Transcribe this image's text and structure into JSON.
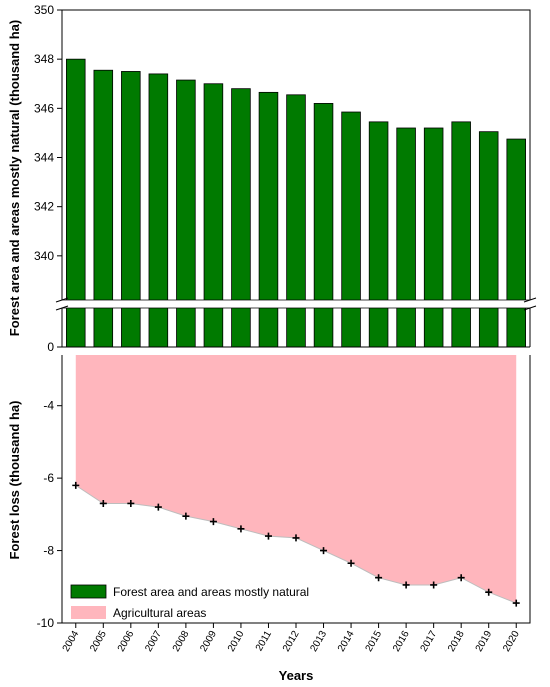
{
  "chart_data": [
    {
      "type": "bar",
      "ylabel": "Forest area and areas mostly natural (thousand ha)",
      "y_axis_break": true,
      "ylim_upper": [
        338,
        350
      ],
      "ylim_lower_ticks": [
        0
      ],
      "yticks": [
        0,
        340,
        342,
        344,
        346,
        348,
        350
      ],
      "categories": [
        "2004",
        "2005",
        "2006",
        "2007",
        "2008",
        "2009",
        "2010",
        "2011",
        "2012",
        "2013",
        "2014",
        "2015",
        "2016",
        "2017",
        "2018",
        "2019",
        "2020"
      ],
      "series": [
        {
          "name": "Forest area and areas mostly natural",
          "color": "#007a00",
          "values": [
            348.0,
            347.55,
            347.5,
            347.4,
            347.15,
            347.0,
            346.8,
            346.65,
            346.55,
            346.2,
            345.85,
            345.45,
            345.2,
            345.2,
            345.45,
            345.05,
            344.75
          ]
        }
      ]
    },
    {
      "type": "area",
      "ylabel": "Forest loss (thousand ha)",
      "xlabel": "Years",
      "ylim": [
        -10,
        -2.6
      ],
      "yticks": [
        -10,
        -8,
        -6,
        -4
      ],
      "x": [
        "2004",
        "2005",
        "2006",
        "2007",
        "2008",
        "2009",
        "2010",
        "2011",
        "2012",
        "2013",
        "2014",
        "2015",
        "2016",
        "2017",
        "2018",
        "2019",
        "2020"
      ],
      "series": [
        {
          "name": "Agricultural areas",
          "color": "#ffb6bd",
          "values": [
            -6.2,
            -6.7,
            -6.7,
            -6.8,
            -7.05,
            -7.2,
            -7.4,
            -7.6,
            -7.65,
            -8.0,
            -8.35,
            -8.75,
            -8.95,
            -8.95,
            -8.75,
            -9.15,
            -9.45
          ]
        }
      ]
    }
  ],
  "legend": {
    "items": [
      {
        "label": "Forest area and areas mostly natural",
        "color": "#007a00"
      },
      {
        "label": "Agricultural areas",
        "color": "#ffb6bd"
      }
    ]
  }
}
